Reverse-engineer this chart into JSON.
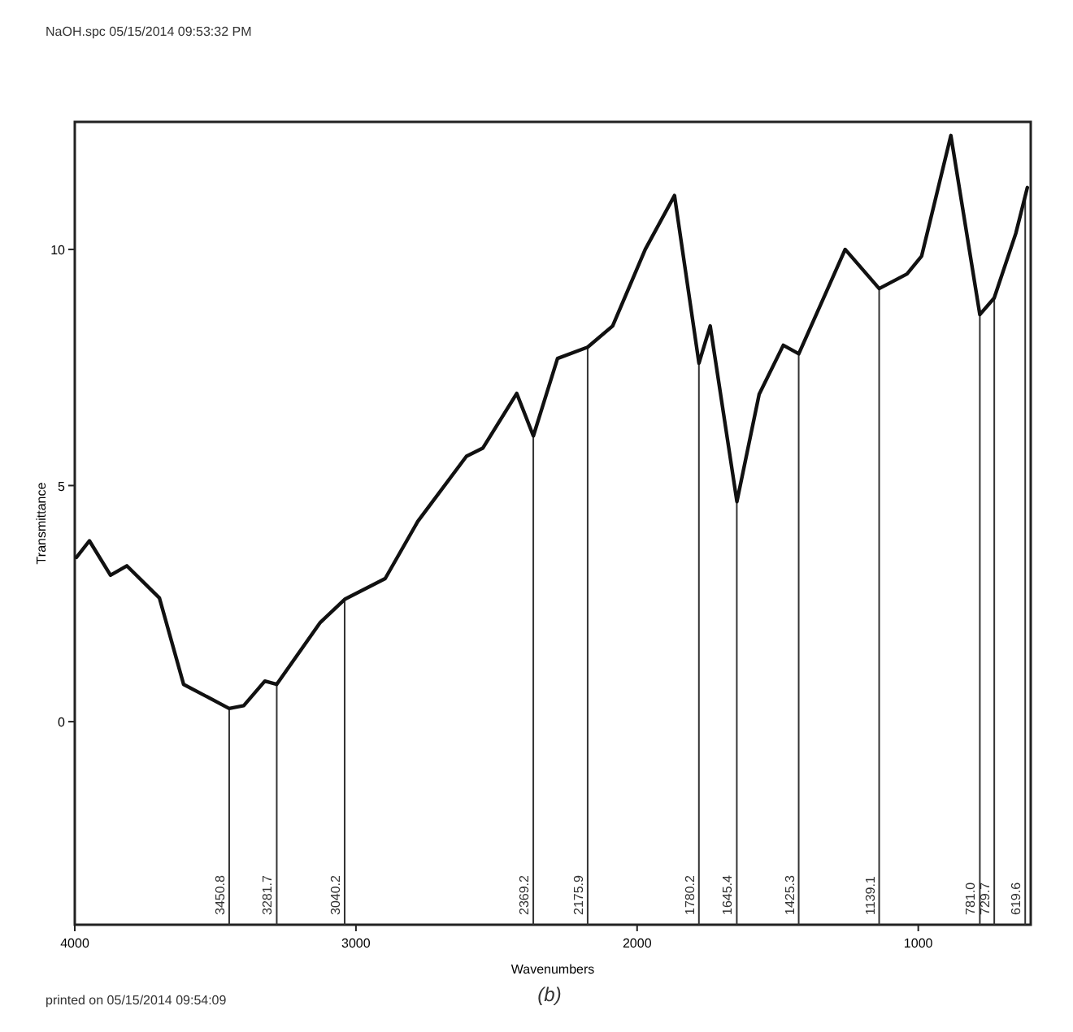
{
  "chart_data": {
    "type": "line",
    "xlabel": "Wavenumbers",
    "ylabel": "Transmittance",
    "x": [
      3994,
      3948,
      3873,
      3815,
      3699,
      3613,
      3451,
      3399,
      3324,
      3282,
      3127,
      3040,
      2896,
      2780,
      2607,
      2549,
      2428,
      2369,
      2283,
      2176,
      2087,
      1971,
      1867,
      1780,
      1740,
      1645,
      1566,
      1480,
      1425,
      1260,
      1139,
      1040,
      988,
      884,
      781,
      730,
      653,
      612
    ],
    "series": [
      {
        "color": "#111111",
        "values": [
          3.48,
          3.83,
          3.1,
          3.3,
          2.62,
          0.79,
          0.28,
          0.34,
          0.86,
          0.79,
          2.1,
          2.59,
          3.03,
          4.24,
          5.62,
          5.79,
          6.95,
          6.05,
          7.69,
          7.93,
          8.38,
          10.0,
          11.14,
          7.59,
          8.38,
          4.66,
          6.93,
          7.97,
          7.79,
          10.0,
          9.17,
          9.48,
          9.86,
          12.41,
          8.62,
          8.97,
          10.34,
          11.31
        ]
      }
    ],
    "xlim": [
      4000,
      600
    ],
    "xticks": [
      {
        "value": 4000,
        "label": "4000"
      },
      {
        "value": 3000,
        "label": "3000"
      },
      {
        "value": 2000,
        "label": "2000"
      },
      {
        "value": 1000,
        "label": "1000"
      }
    ],
    "ylim": [
      -4.3,
      12.7
    ],
    "yticks": [
      0,
      5,
      10
    ],
    "ref_lines": [
      {
        "axis": "x",
        "value": 3450.8,
        "label": "3450.8",
        "color": "#333333"
      },
      {
        "axis": "x",
        "value": 3281.7,
        "label": "3281.7",
        "color": "#333333"
      },
      {
        "axis": "x",
        "value": 3040.2,
        "label": "3040.2",
        "color": "#333333"
      },
      {
        "axis": "x",
        "value": 2369.2,
        "label": "2369.2",
        "color": "#333333"
      },
      {
        "axis": "x",
        "value": 2175.9,
        "label": "2175.9",
        "color": "#333333"
      },
      {
        "axis": "x",
        "value": 1780.2,
        "label": "1780.2",
        "color": "#333333"
      },
      {
        "axis": "x",
        "value": 1645.4,
        "label": "1645.4",
        "color": "#333333"
      },
      {
        "axis": "x",
        "value": 1425.3,
        "label": "1425.3",
        "color": "#333333"
      },
      {
        "axis": "x",
        "value": 1139.1,
        "label": "1139.1",
        "color": "#333333"
      },
      {
        "axis": "x",
        "value": 781.0,
        "label": "781.0",
        "color": "#333333"
      },
      {
        "axis": "x",
        "value": 729.7,
        "label": "729.7",
        "color": "#333333"
      },
      {
        "axis": "x",
        "value": 619.6,
        "label": "619.6",
        "color": "#333333"
      }
    ],
    "annotations": [
      "NaOH.spc 05/15/2014 09:53:32 PM",
      "printed on 05/15/2014 09:54:09",
      "(b)"
    ]
  }
}
